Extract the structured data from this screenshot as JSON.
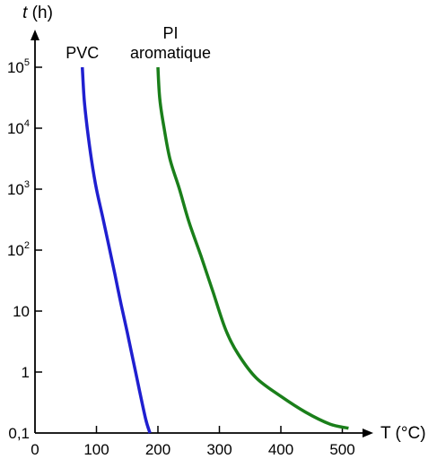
{
  "chart_data": {
    "type": "line",
    "title": "",
    "xlabel": "T (°C)",
    "ylabel": "t (h)",
    "x_axis": {
      "scale": "linear",
      "range": [
        0,
        500
      ],
      "ticks": [
        {
          "value": 0,
          "label": "0"
        },
        {
          "value": 100,
          "label": "100"
        },
        {
          "value": 200,
          "label": "200"
        },
        {
          "value": 300,
          "label": "300"
        },
        {
          "value": 400,
          "label": "400"
        },
        {
          "value": 500,
          "label": "500"
        }
      ]
    },
    "y_axis": {
      "scale": "log",
      "range": [
        0.1,
        100000
      ],
      "ticks": [
        {
          "value": 0.1,
          "label": "0,1",
          "base": "",
          "exp": ""
        },
        {
          "value": 1,
          "label": "1",
          "base": "",
          "exp": ""
        },
        {
          "value": 10,
          "label": "10",
          "base": "",
          "exp": ""
        },
        {
          "value": 100,
          "label": "",
          "base": "10",
          "exp": "2"
        },
        {
          "value": 1000,
          "label": "",
          "base": "10",
          "exp": "3"
        },
        {
          "value": 10000,
          "label": "",
          "base": "10",
          "exp": "4"
        },
        {
          "value": 100000,
          "label": "",
          "base": "10",
          "exp": "5"
        }
      ]
    },
    "grid": false,
    "legend": "none",
    "series": [
      {
        "name": "PVC",
        "label_lines": [
          "PVC"
        ],
        "color": "#1f1fd0",
        "x": [
          77,
          80,
          85,
          92,
          100,
          110,
          120,
          130,
          140,
          150,
          160,
          170,
          180,
          187
        ],
        "y": [
          100000,
          30000,
          10000,
          3000,
          1000,
          350,
          120,
          40,
          13,
          4.5,
          1.5,
          0.5,
          0.17,
          0.1
        ]
      },
      {
        "name": "PI aromatique",
        "label_lines": [
          "PI",
          "aromatique"
        ],
        "color": "#1a7f1a",
        "x": [
          200,
          203,
          210,
          220,
          235,
          250,
          270,
          290,
          310,
          330,
          360,
          400,
          440,
          480,
          510
        ],
        "y": [
          100000,
          30000,
          10000,
          3000,
          1000,
          300,
          80,
          20,
          5,
          2,
          0.8,
          0.4,
          0.22,
          0.14,
          0.12
        ]
      }
    ]
  }
}
